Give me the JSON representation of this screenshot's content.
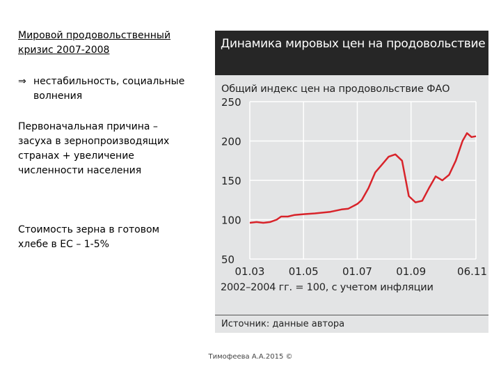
{
  "slide": {
    "title_line1": "Мировой продовольственный",
    "title_line2": "кризис 2007-2008",
    "bullet_arrow": "⇒",
    "bullet_text": "нестабильность, социальные волнения",
    "cause_text": "Первоначальная причина – засуха в зернопроизводящих странах + увеличение численности населения",
    "cost_text": "Стоимость зерна в готовом хлебе в ЕС – 1-5%",
    "footer": "Тимофеева А.А.2015 ©"
  },
  "chart_data": {
    "type": "line",
    "title": "Динамика мировых цен на продовольствие",
    "subtitle": "Общий индекс цен на продовольствие ФАО",
    "note": "2002–2004 гг. = 100, с учетом инфляции",
    "source": "Источник: данные автора",
    "ylim": [
      50,
      250
    ],
    "yticks": [
      250,
      200,
      150,
      100,
      50
    ],
    "xlim": [
      "2003-01",
      "2011-06"
    ],
    "xtick_labels": [
      "01.03",
      "01.05",
      "01.07",
      "01.09",
      "06.11"
    ],
    "xticks": [
      "2003-01",
      "2005-01",
      "2007-01",
      "2009-01",
      "2011-06"
    ],
    "grid": true,
    "colors": {
      "line": "#d8232a",
      "grid": "#ffffff"
    },
    "series": [
      {
        "x": [
          "2003-01",
          "2003-04",
          "2003-07",
          "2003-10",
          "2004-01",
          "2004-03",
          "2004-06",
          "2004-09",
          "2005-01",
          "2005-06",
          "2006-01",
          "2006-06",
          "2006-09",
          "2007-01",
          "2007-03",
          "2007-06",
          "2007-09",
          "2007-12",
          "2008-03",
          "2008-06",
          "2008-09",
          "2008-12",
          "2009-03",
          "2009-06",
          "2009-09",
          "2009-12",
          "2010-03",
          "2010-06",
          "2010-09",
          "2010-12",
          "2011-02",
          "2011-04",
          "2011-06"
        ],
        "values": [
          96,
          97,
          96,
          97,
          100,
          104,
          104,
          106,
          107,
          108,
          110,
          113,
          114,
          120,
          125,
          140,
          160,
          170,
          180,
          183,
          175,
          130,
          122,
          124,
          140,
          155,
          150,
          157,
          175,
          200,
          210,
          205,
          206
        ]
      }
    ]
  }
}
